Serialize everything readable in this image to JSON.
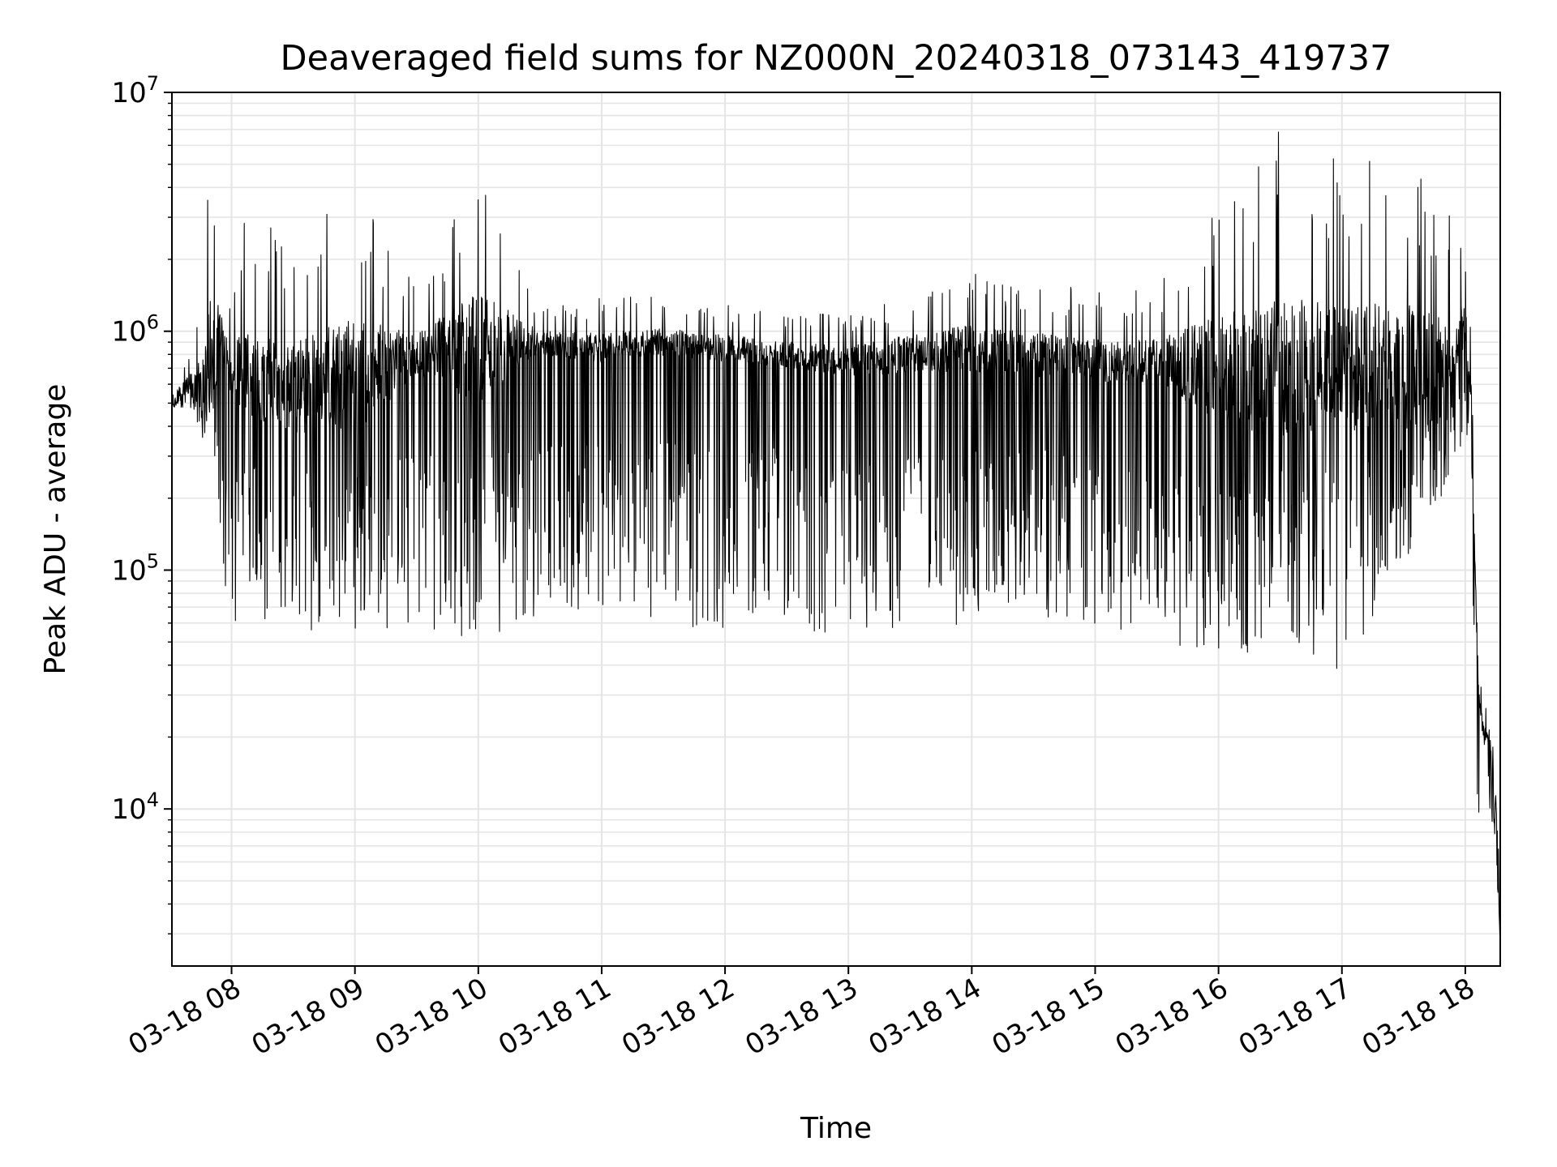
{
  "chart_data": {
    "type": "line",
    "title": "Deaveraged field sums for NZ000N_20240318_073143_419737",
    "xlabel": "Time",
    "ylabel": "Peak ADU - average",
    "yscale": "log",
    "ylim": [
      2200,
      10000000
    ],
    "xlim": [
      "2024-03-18 07:31",
      "2024-03-18 18:17"
    ],
    "grid": true,
    "line_color": "#000000",
    "x_tick_labels": [
      "03-18 08",
      "03-18 09",
      "03-18 10",
      "03-18 11",
      "03-18 12",
      "03-18 13",
      "03-18 14",
      "03-18 15",
      "03-18 16",
      "03-18 17",
      "03-18 18"
    ],
    "y_tick_labels": [
      {
        "base": "10",
        "exp": "4",
        "value": 10000
      },
      {
        "base": "10",
        "exp": "5",
        "value": 100000
      },
      {
        "base": "10",
        "exp": "6",
        "value": 1000000
      },
      {
        "base": "10",
        "exp": "7",
        "value": 10000000
      }
    ],
    "series": [
      {
        "x": [
          "2024-03-18 07:31",
          "2024-03-18 07:40",
          "2024-03-18 07:45",
          "2024-03-18 07:50",
          "2024-03-18 07:55",
          "2024-03-18 08:00",
          "2024-03-18 08:05",
          "2024-03-18 08:30",
          "2024-03-18 09:00",
          "2024-03-18 09:30",
          "2024-03-18 10:00",
          "2024-03-18 10:30",
          "2024-03-18 11:00",
          "2024-03-18 11:30",
          "2024-03-18 12:00",
          "2024-03-18 12:30",
          "2024-03-18 13:00",
          "2024-03-18 13:30",
          "2024-03-18 14:00",
          "2024-03-18 14:30",
          "2024-03-18 15:00",
          "2024-03-18 15:30",
          "2024-03-18 16:00",
          "2024-03-18 16:30",
          "2024-03-18 17:00",
          "2024-03-18 17:30",
          "2024-03-18 17:55",
          "2024-03-18 18:00",
          "2024-03-18 18:03",
          "2024-03-18 18:06",
          "2024-03-18 18:09",
          "2024-03-18 18:12",
          "2024-03-18 18:15",
          "2024-03-18 18:17"
        ],
        "y": [
          500000,
          620000,
          600000,
          780000,
          1000000,
          650000,
          700000,
          600000,
          650000,
          800000,
          850000,
          900000,
          850000,
          900000,
          850000,
          800000,
          750000,
          800000,
          850000,
          800000,
          750000,
          750000,
          700000,
          700000,
          700000,
          700000,
          750000,
          1200000,
          500000,
          35000,
          20000,
          20000,
          10000,
          3000
        ],
        "upper": [
          650000,
          800000,
          1500000,
          5500000,
          2500000,
          1300000,
          3200000,
          2800000,
          4200000,
          1500000,
          5500000,
          1300000,
          1400000,
          1400000,
          1300000,
          1200000,
          1200000,
          1500000,
          1800000,
          1600000,
          1500000,
          1500000,
          4000000,
          7000000,
          5500000,
          5500000,
          3000000,
          2200000,
          900000,
          45000,
          30000,
          25000,
          15000,
          5000
        ],
        "lower": [
          480000,
          480000,
          370000,
          300000,
          130000,
          38000,
          60000,
          55000,
          55000,
          55000,
          50000,
          60000,
          65000,
          60000,
          55000,
          60000,
          50000,
          55000,
          60000,
          65000,
          55000,
          55000,
          38000,
          50000,
          37000,
          100000,
          250000,
          400000,
          200000,
          6000,
          10000,
          10000,
          7000,
          2200
        ]
      }
    ]
  }
}
